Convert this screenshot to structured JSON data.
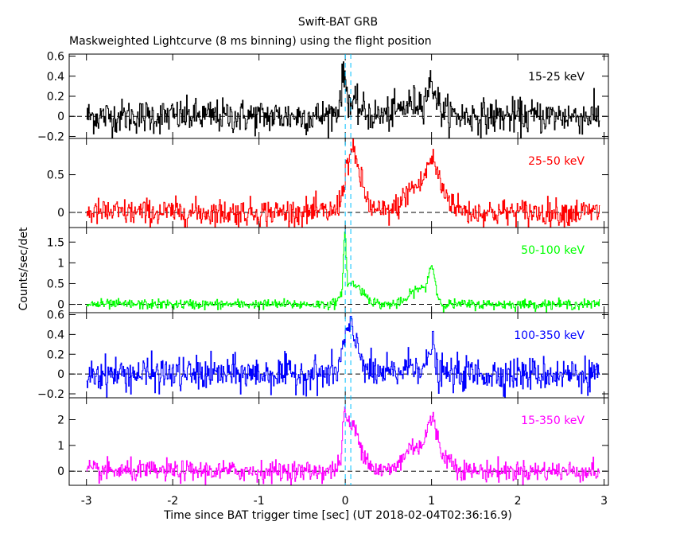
{
  "chart_data": {
    "type": "line",
    "title": "Swift-BAT GRB",
    "subtitle": "Maskweighted Lightcurve (8 ms binning) using the flight position",
    "xlabel": "Time since BAT trigger time [sec] (UT 2018-02-04T02:36:16.9)",
    "ylabel": "Counts/sec/det",
    "xlim": [
      -3.2,
      3.05
    ],
    "x_ticks": [
      -3,
      -2,
      -1,
      0,
      1,
      2,
      3
    ],
    "x_tick_labels": [
      "-3",
      "-2",
      "-1",
      "0",
      "1",
      "2",
      "3"
    ],
    "data_range": [
      -3.0,
      2.95
    ],
    "bin_width": 0.008,
    "panels": [
      {
        "band": "15-25 keV",
        "color": "#000000",
        "ylim": [
          -0.22,
          0.62
        ],
        "y_ticks": [
          -0.2,
          0,
          0.2,
          0.4,
          0.6
        ],
        "y_tick_labels": [
          "−0.2",
          "0",
          "0.2",
          "0.4",
          "0.6"
        ],
        "noise": 0.085,
        "features": [
          {
            "center": -0.02,
            "width": 0.03,
            "amp": 0.3
          },
          {
            "center": 0.05,
            "width": 0.12,
            "amp": 0.12
          },
          {
            "center": 0.85,
            "width": 0.18,
            "amp": 0.14
          },
          {
            "center": 1.0,
            "width": 0.05,
            "amp": 0.22
          }
        ]
      },
      {
        "band": "25-50 keV",
        "color": "#ff0000",
        "ylim": [
          -0.2,
          0.98
        ],
        "y_ticks": [
          0,
          0.5
        ],
        "y_tick_labels": [
          "0",
          "0.5"
        ],
        "noise": 0.09,
        "features": [
          {
            "center": 0.05,
            "width": 0.07,
            "amp": 0.6
          },
          {
            "center": 0.15,
            "width": 0.08,
            "amp": 0.35
          },
          {
            "center": 0.8,
            "width": 0.12,
            "amp": 0.33
          },
          {
            "center": 1.0,
            "width": 0.07,
            "amp": 0.55
          },
          {
            "center": 1.15,
            "width": 0.1,
            "amp": 0.2
          }
        ]
      },
      {
        "band": "50-100 keV",
        "color": "#00ff00",
        "ylim": [
          -0.2,
          1.85
        ],
        "y_ticks": [
          0,
          0.5,
          1,
          1.5
        ],
        "y_tick_labels": [
          "0",
          "0.5",
          "1",
          "1.5"
        ],
        "noise": 0.06,
        "features": [
          {
            "center": -0.01,
            "width": 0.015,
            "amp": 1.5
          },
          {
            "center": 0.06,
            "width": 0.08,
            "amp": 0.45
          },
          {
            "center": 0.2,
            "width": 0.08,
            "amp": 0.2
          },
          {
            "center": 0.85,
            "width": 0.1,
            "amp": 0.38
          },
          {
            "center": 1.0,
            "width": 0.04,
            "amp": 0.8
          }
        ]
      },
      {
        "band": "100-350 keV",
        "color": "#0000ff",
        "ylim": [
          -0.24,
          0.62
        ],
        "y_ticks": [
          -0.2,
          0,
          0.2,
          0.4,
          0.6
        ],
        "y_tick_labels": [
          "−0.2",
          "0",
          "0.2",
          "0.4",
          "0.6"
        ],
        "noise": 0.085,
        "features": [
          {
            "center": 0.03,
            "width": 0.06,
            "amp": 0.42
          },
          {
            "center": 0.15,
            "width": 0.06,
            "amp": 0.2
          },
          {
            "center": 0.8,
            "width": 0.1,
            "amp": 0.1
          },
          {
            "center": 1.0,
            "width": 0.03,
            "amp": 0.3
          }
        ]
      },
      {
        "band": "15-350 keV",
        "color": "#ff00ff",
        "ylim": [
          -0.55,
          2.85
        ],
        "y_ticks": [
          0,
          1,
          2
        ],
        "y_tick_labels": [
          "0",
          "1",
          "2"
        ],
        "noise": 0.2,
        "features": [
          {
            "center": -0.01,
            "width": 0.02,
            "amp": 1.2
          },
          {
            "center": 0.05,
            "width": 0.07,
            "amp": 1.6
          },
          {
            "center": 0.18,
            "width": 0.08,
            "amp": 0.7
          },
          {
            "center": 0.8,
            "width": 0.12,
            "amp": 1.0
          },
          {
            "center": 1.0,
            "width": 0.06,
            "amp": 1.6
          },
          {
            "center": 1.15,
            "width": 0.1,
            "amp": 0.5
          }
        ]
      }
    ],
    "markers": [
      {
        "x": 0.0,
        "color": "#00bfff",
        "style": "dashed"
      },
      {
        "x": 0.064,
        "color": "#00bfff",
        "style": "dashed"
      }
    ],
    "grid": false
  }
}
